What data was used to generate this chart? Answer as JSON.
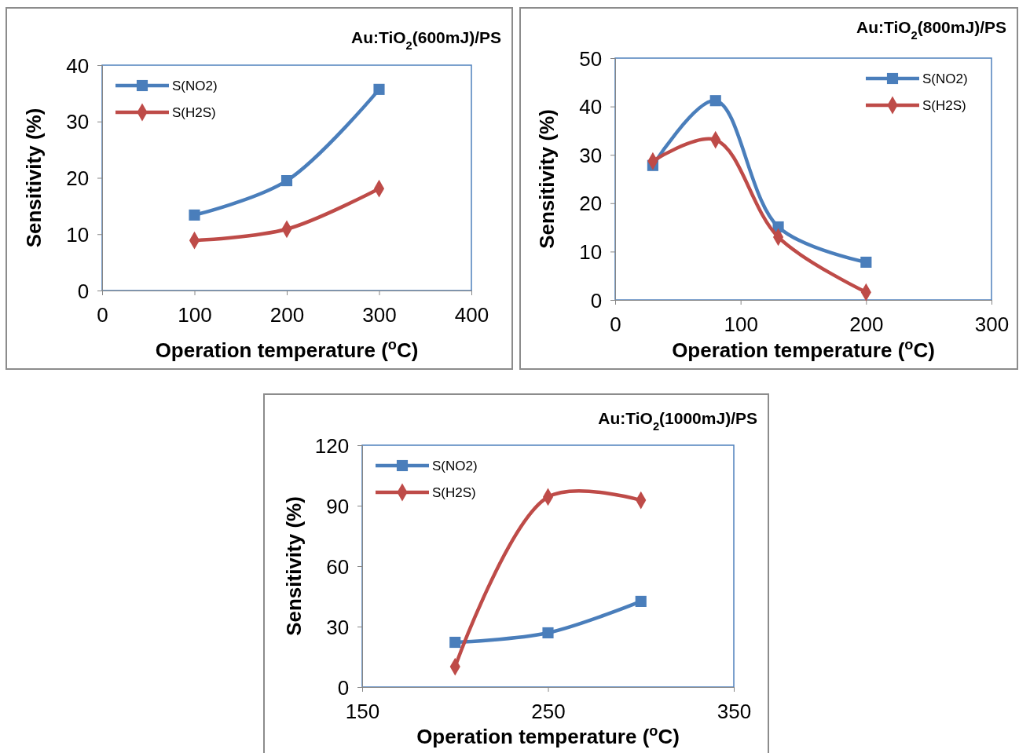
{
  "chart_data": [
    {
      "type": "line",
      "title": "Au:TiO$_{2}$(600mJ)/PS",
      "xlabel": "Operation temperature ($^{o}$C)",
      "ylabel": "Sensitivity (%)",
      "xlim": [
        0,
        400
      ],
      "xticks": [
        0,
        100,
        200,
        300,
        400
      ],
      "ylim": [
        0,
        40
      ],
      "yticks": [
        0,
        10,
        20,
        30,
        40
      ],
      "legend": "top left",
      "x": [
        100,
        200,
        300
      ],
      "series": [
        {
          "name": "S(NO2)",
          "color": "#4a7ebb",
          "marker": "square",
          "values": [
            13.4,
            19.5,
            35.7
          ]
        },
        {
          "name": "S(H2S)",
          "color": "#be4b48",
          "marker": "diamond",
          "values": [
            8.9,
            10.9,
            18.1
          ]
        }
      ]
    },
    {
      "type": "line",
      "title": "Au:TiO$_{2}$(800mJ)/PS",
      "xlabel": "Operation temperature ($^{o}$C)",
      "ylabel": "Sensitivity (%)",
      "xlim": [
        0,
        300
      ],
      "xticks": [
        0,
        100,
        200,
        300
      ],
      "ylim": [
        0,
        50
      ],
      "yticks": [
        0,
        10,
        20,
        30,
        40,
        50
      ],
      "legend": "top right",
      "x": [
        30,
        80,
        130,
        200
      ],
      "series": [
        {
          "name": "S(NO2)",
          "color": "#4a7ebb",
          "marker": "square",
          "values": [
            27.8,
            41.2,
            15.1,
            7.8
          ]
        },
        {
          "name": "S(H2S)",
          "color": "#be4b48",
          "marker": "diamond",
          "values": [
            28.7,
            33.1,
            13.0,
            1.6
          ]
        }
      ]
    },
    {
      "type": "line",
      "title": "Au:TiO$_{2}$(1000mJ)/PS",
      "xlabel": "Operation temperature ($^{o}$C)",
      "ylabel": "Sensitivity (%)",
      "xlim": [
        150,
        350
      ],
      "xticks": [
        150,
        250,
        350
      ],
      "ylim": [
        0,
        120
      ],
      "yticks": [
        0,
        30,
        60,
        90,
        120
      ],
      "legend": "top left",
      "x": [
        200,
        250,
        300
      ],
      "series": [
        {
          "name": "S(NO2)",
          "color": "#4a7ebb",
          "marker": "square",
          "values": [
            22.2,
            26.9,
            42.5
          ]
        },
        {
          "name": "S(H2S)",
          "color": "#be4b48",
          "marker": "diamond",
          "values": [
            10.1,
            94.3,
            92.7
          ]
        }
      ]
    }
  ]
}
